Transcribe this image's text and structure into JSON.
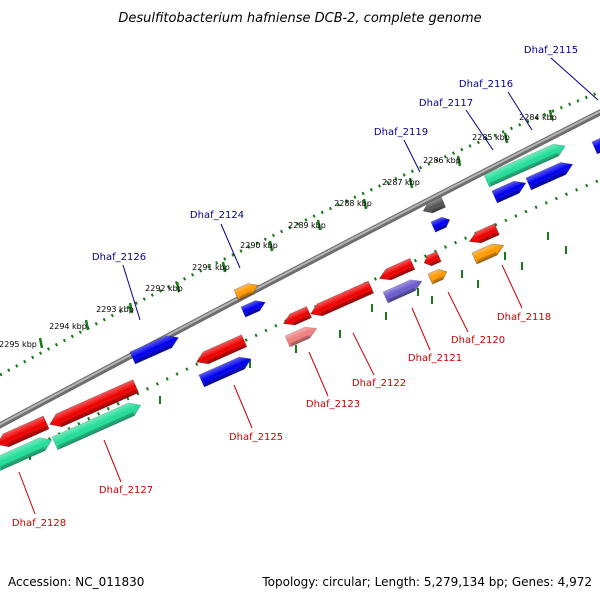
{
  "title": "Desulfitobacterium hafniense DCB-2, complete genome",
  "footer": {
    "accession": "Accession: NC_011830",
    "summary": "Topology: circular; Length: 5,279,134 bp; Genes: 4,972"
  },
  "colors": {
    "backbone": "#7a7a7a",
    "tick_dots": "#1a7a1a",
    "forward_label": "#00008b",
    "reverse_label": "#cc0000",
    "gene_red": "#ee0000",
    "gene_blue": "#0000ee",
    "gene_green": "#22dd99",
    "gene_orange": "#ff9900",
    "gene_gray": "#555555",
    "gene_purple": "#6a5acd",
    "gene_pink": "#f08080"
  },
  "ticks": [
    "2284 kbp",
    "2285 kbp",
    "2286 kbp",
    "2287 kbp",
    "2288 kbp",
    "2289 kbp",
    "2290 kbp",
    "2291 kbp",
    "2292 kbp",
    "2293 kbp",
    "2294 kbp",
    "2295 kbp"
  ],
  "labels": {
    "forward": [
      "Dhaf_2115",
      "Dhaf_2116",
      "Dhaf_2117",
      "Dhaf_2119",
      "Dhaf_2124",
      "Dhaf_2126"
    ],
    "reverse": [
      "Dhaf_2118",
      "Dhaf_2120",
      "Dhaf_2121",
      "Dhaf_2122",
      "Dhaf_2123",
      "Dhaf_2125",
      "Dhaf_2127",
      "Dhaf_2128"
    ]
  }
}
